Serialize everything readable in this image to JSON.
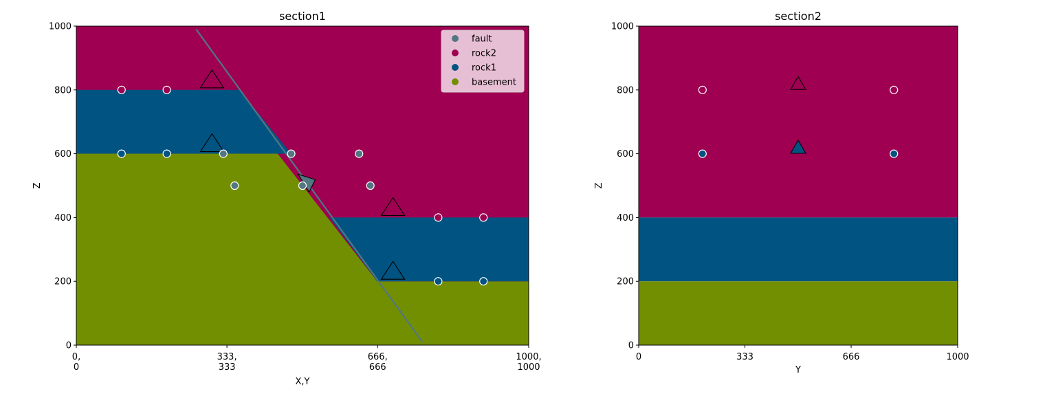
{
  "colors": {
    "fault": "#527682",
    "rock2": "#9f0052",
    "rock1": "#015482",
    "basement": "#728f02",
    "legend_bg": "#ebc9db"
  },
  "chart_data": [
    {
      "type": "geological_section",
      "title": "section1",
      "xlabel": "X,Y",
      "ylabel": "Z",
      "xlim": [
        0,
        1000
      ],
      "ylim": [
        0,
        1000
      ],
      "xtick_labels": [
        {
          "value": 0,
          "lines": [
            "0,",
            "0"
          ]
        },
        {
          "value": 333,
          "lines": [
            "333,",
            "333"
          ]
        },
        {
          "value": 666,
          "lines": [
            "666,",
            "666"
          ]
        },
        {
          "value": 1000,
          "lines": [
            "1000,",
            "1000"
          ]
        }
      ],
      "ytick_labels": [
        "0",
        "200",
        "400",
        "600",
        "800",
        "1000"
      ],
      "legend": {
        "placement": "top-right",
        "entries": [
          {
            "name": "fault",
            "color_key": "fault"
          },
          {
            "name": "rock2",
            "color_key": "rock2"
          },
          {
            "name": "rock1",
            "color_key": "rock1"
          },
          {
            "name": "basement",
            "color_key": "basement"
          }
        ]
      },
      "layer_regions": [
        {
          "unit": "rock2",
          "polygon": [
            [
              0,
              1000
            ],
            [
              1000,
              1000
            ],
            [
              1000,
              0
            ],
            [
              0,
              0
            ]
          ]
        },
        {
          "unit": "rock1",
          "polygon": [
            [
              0,
              800
            ],
            [
              360,
              800
            ],
            [
              475,
              600
            ],
            [
              0,
              600
            ]
          ]
        },
        {
          "unit": "basement",
          "polygon": [
            [
              0,
              600
            ],
            [
              445,
              600
            ],
            [
              665,
              200
            ],
            [
              0,
              200
            ],
            [
              0,
              0
            ]
          ]
        },
        {
          "unit": "basement",
          "polygon": [
            [
              0,
              0
            ],
            [
              0,
              600
            ],
            [
              445,
              600
            ],
            [
              665,
              200
            ],
            [
              1000,
              200
            ],
            [
              1000,
              0
            ]
          ]
        },
        {
          "unit": "rock1",
          "polygon": [
            [
              560,
              400
            ],
            [
              1000,
              400
            ],
            [
              1000,
              200
            ],
            [
              665,
              200
            ]
          ]
        }
      ],
      "fault_line": [
        [
          265,
          990
        ],
        [
          765,
          10
        ]
      ],
      "surface_points": [
        {
          "x": 100,
          "z": 800,
          "unit": "rock2"
        },
        {
          "x": 200,
          "z": 800,
          "unit": "rock2"
        },
        {
          "x": 100,
          "z": 600,
          "unit": "rock1"
        },
        {
          "x": 200,
          "z": 600,
          "unit": "rock1"
        },
        {
          "x": 325,
          "z": 600,
          "unit": "fault"
        },
        {
          "x": 475,
          "z": 600,
          "unit": "fault"
        },
        {
          "x": 625,
          "z": 600,
          "unit": "fault"
        },
        {
          "x": 350,
          "z": 500,
          "unit": "fault"
        },
        {
          "x": 500,
          "z": 500,
          "unit": "fault"
        },
        {
          "x": 650,
          "z": 500,
          "unit": "fault"
        },
        {
          "x": 800,
          "z": 400,
          "unit": "rock2"
        },
        {
          "x": 900,
          "z": 400,
          "unit": "rock2"
        },
        {
          "x": 800,
          "z": 200,
          "unit": "rock1"
        },
        {
          "x": 900,
          "z": 200,
          "unit": "rock1"
        }
      ],
      "orientations": [
        {
          "x": 300,
          "z": 815,
          "unit": "rock2",
          "dir": "up"
        },
        {
          "x": 300,
          "z": 615,
          "unit": "rock1",
          "dir": "up"
        },
        {
          "x": 700,
          "z": 415,
          "unit": "rock2",
          "dir": "up"
        },
        {
          "x": 700,
          "z": 215,
          "unit": "rock1",
          "dir": "up"
        },
        {
          "x": 510,
          "z": 510,
          "unit": "fault",
          "dir": "down"
        }
      ]
    },
    {
      "type": "geological_section",
      "title": "section2",
      "xlabel": "Y",
      "ylabel": "Z",
      "xlim": [
        0,
        1000
      ],
      "ylim": [
        0,
        1000
      ],
      "xtick_labels": [
        {
          "value": 0,
          "lines": [
            "0"
          ]
        },
        {
          "value": 333,
          "lines": [
            "333"
          ]
        },
        {
          "value": 666,
          "lines": [
            "666"
          ]
        },
        {
          "value": 1000,
          "lines": [
            "1000"
          ]
        }
      ],
      "ytick_labels": [
        "0",
        "200",
        "400",
        "600",
        "800",
        "1000"
      ],
      "layer_regions": [
        {
          "unit": "rock2",
          "polygon": [
            [
              0,
              1000
            ],
            [
              1000,
              1000
            ],
            [
              1000,
              400
            ],
            [
              0,
              400
            ]
          ]
        },
        {
          "unit": "rock1",
          "polygon": [
            [
              0,
              400
            ],
            [
              1000,
              400
            ],
            [
              1000,
              200
            ],
            [
              0,
              200
            ]
          ]
        },
        {
          "unit": "basement",
          "polygon": [
            [
              0,
              200
            ],
            [
              1000,
              200
            ],
            [
              1000,
              0
            ],
            [
              0,
              0
            ]
          ]
        }
      ],
      "surface_points": [
        {
          "x": 200,
          "z": 800,
          "unit": "rock2"
        },
        {
          "x": 800,
          "z": 800,
          "unit": "rock2"
        },
        {
          "x": 200,
          "z": 600,
          "unit": "rock1"
        },
        {
          "x": 800,
          "z": 600,
          "unit": "rock1"
        }
      ],
      "orientations": [
        {
          "x": 500,
          "z": 810,
          "unit": "rock2",
          "dir": "up"
        },
        {
          "x": 500,
          "z": 610,
          "unit": "rock1",
          "dir": "up"
        }
      ]
    }
  ]
}
